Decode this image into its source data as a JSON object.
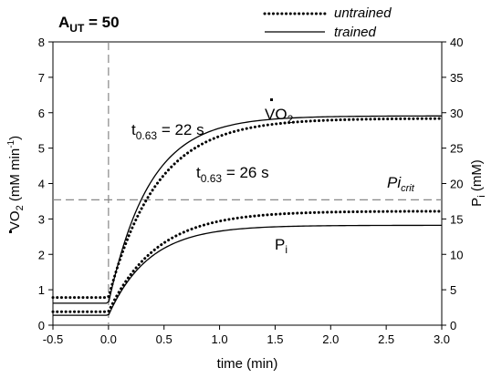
{
  "chart_data": {
    "type": "line",
    "panel_label": {
      "main": "A",
      "sub": "UT",
      "rest": " = 50"
    },
    "xlabel": "time (min)",
    "ylabel_left": {
      "main": "VO",
      "sub": "2",
      "units": " (mM min",
      "sup": "-1",
      "close": ")"
    },
    "ylabel_right": {
      "main": "P",
      "sub": "i",
      "units": " (mM)"
    },
    "xlim": [
      -0.5,
      3.0
    ],
    "ylim_left": [
      0,
      8
    ],
    "ylim_right": [
      0,
      40
    ],
    "x_ticks": [
      "-0.5",
      "0.0",
      "0.5",
      "1.0",
      "1.5",
      "2.0",
      "2.5",
      "3.0"
    ],
    "y_left_ticks": [
      "0",
      "1",
      "2",
      "3",
      "4",
      "5",
      "6",
      "7",
      "8"
    ],
    "y_right_ticks": [
      "0",
      "5",
      "10",
      "15",
      "20",
      "25",
      "30",
      "35",
      "40"
    ],
    "legend": [
      {
        "label": "untrained",
        "style": "dotted"
      },
      {
        "label": "trained",
        "style": "solid"
      }
    ],
    "annotations": {
      "vo2": {
        "main": "VO",
        "sub": "2"
      },
      "pi": {
        "main": "P",
        "sub": "i"
      },
      "tau_trained": {
        "main": "t",
        "sub": "0.63",
        "rest": " = 22 s"
      },
      "tau_untrained": {
        "main": "t",
        "sub": "0.63",
        "rest": " = 26 s"
      },
      "pi_crit": {
        "main": "Pi",
        "sub": "crit"
      }
    },
    "reference_lines": {
      "onset_time_min": 0.0,
      "pi_crit_mM": 17.7
    },
    "series": [
      {
        "label_ref": "untrained",
        "quantity": "VO2",
        "axis": "left",
        "style": "dotted",
        "baseline": 0.78,
        "steady": 5.84,
        "tau_s": 26
      },
      {
        "label_ref": "trained",
        "quantity": "VO2",
        "axis": "left",
        "style": "solid",
        "baseline": 0.62,
        "steady": 5.91,
        "tau_s": 22
      },
      {
        "label_ref": "untrained",
        "quantity": "Pi",
        "axis": "right",
        "style": "dotted",
        "baseline": 1.9,
        "steady": 16.1,
        "tau_s": 26
      },
      {
        "label_ref": "trained",
        "quantity": "Pi",
        "axis": "right",
        "style": "solid",
        "baseline": 1.4,
        "steady": 14.1,
        "tau_s": 22
      }
    ]
  }
}
